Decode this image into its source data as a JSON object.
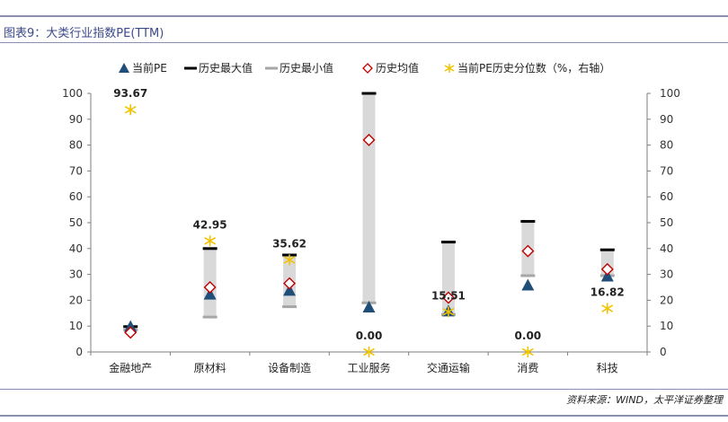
{
  "header": {
    "figure_title": "图表9：大类行业指数PE(TTM)"
  },
  "footer": {
    "source": "资料来源：WIND，太平洋证券整理"
  },
  "chart_data": {
    "type": "range-marker",
    "categories": [
      "金融地产",
      "原材料",
      "设备制造",
      "工业服务",
      "交通运输",
      "消费",
      "科技"
    ],
    "legend": [
      "当前PE",
      "历史最大值",
      "历史最小值",
      "历史均值",
      "当前PE历史分位数（%，右轴）"
    ],
    "legend_position": "top",
    "series": [
      {
        "name": "当前PE",
        "marker": "triangle",
        "color": "#1f4e79",
        "axis": "left",
        "values": [
          9.5,
          22,
          23.5,
          17,
          15.5,
          25.5,
          29
        ]
      },
      {
        "name": "历史最大值",
        "marker": "dash",
        "color": "#000000",
        "axis": "left",
        "values": [
          9.8,
          40,
          37.5,
          100,
          42.5,
          50.5,
          39.5
        ]
      },
      {
        "name": "历史最小值",
        "marker": "dash",
        "color": "#a6a6a6",
        "axis": "left",
        "values": [
          8.5,
          13.5,
          17.5,
          19,
          14.5,
          29.5,
          29.5
        ]
      },
      {
        "name": "历史均值",
        "marker": "diamond",
        "color": "#c00000",
        "axis": "left",
        "values": [
          7.5,
          25,
          26.5,
          82,
          21,
          39,
          32
        ]
      },
      {
        "name": "当前PE历史分位数（%，右轴）",
        "marker": "star",
        "color": "#f2c200",
        "axis": "right",
        "values": [
          93.67,
          42.95,
          35.62,
          0.0,
          15.51,
          0.0,
          16.82
        ],
        "labels": [
          "93.67",
          "42.95",
          "35.62",
          "0.00",
          "15.51",
          "0.00",
          "16.82"
        ]
      }
    ],
    "ylim_left": [
      0,
      100
    ],
    "ylim_right": [
      0,
      100
    ],
    "yticks": [
      0,
      10,
      20,
      30,
      40,
      50,
      60,
      70,
      80,
      90,
      100
    ],
    "range_bar_color": "#d9d9d9"
  }
}
